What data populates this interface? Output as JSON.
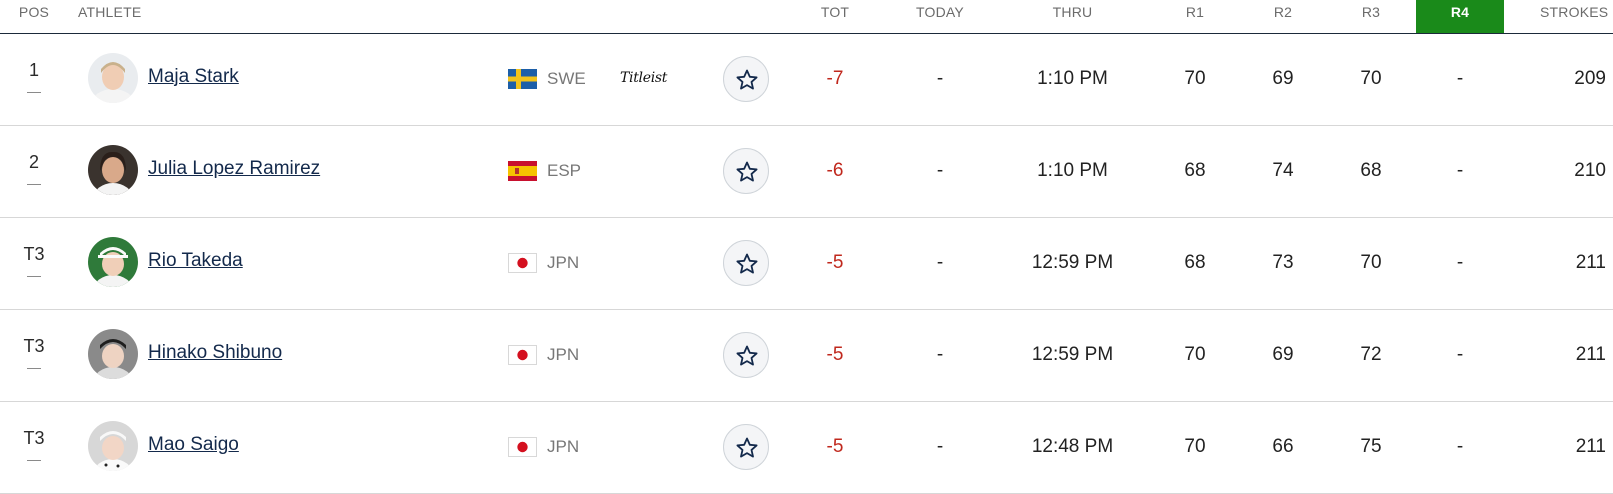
{
  "header": {
    "pos": "POS",
    "athlete": "ATHLETE",
    "tot": "TOT",
    "today": "TODAY",
    "thru": "THRU",
    "r1": "R1",
    "r2": "R2",
    "r3": "R3",
    "r4": "R4",
    "strokes": "STROKES"
  },
  "colors": {
    "accent_r4": "#1a8a1a",
    "under_par": "#c0281d",
    "name_link": "#13294b"
  },
  "players": [
    {
      "pos": "1",
      "name": "Maja Stark",
      "country": "SWE",
      "flag": "sweden-flag-icon",
      "sponsor": "Titleist",
      "tot": "-7",
      "today": "-",
      "thru": "1:10 PM",
      "r1": "70",
      "r2": "69",
      "r3": "70",
      "r4": "-",
      "strokes": "209"
    },
    {
      "pos": "2",
      "name": "Julia Lopez Ramirez",
      "country": "ESP",
      "flag": "spain-flag-icon",
      "sponsor": "",
      "tot": "-6",
      "today": "-",
      "thru": "1:10 PM",
      "r1": "68",
      "r2": "74",
      "r3": "68",
      "r4": "-",
      "strokes": "210"
    },
    {
      "pos": "T3",
      "name": "Rio Takeda",
      "country": "JPN",
      "flag": "japan-flag-icon",
      "sponsor": "",
      "tot": "-5",
      "today": "-",
      "thru": "12:59 PM",
      "r1": "68",
      "r2": "73",
      "r3": "70",
      "r4": "-",
      "strokes": "211"
    },
    {
      "pos": "T3",
      "name": "Hinako Shibuno",
      "country": "JPN",
      "flag": "japan-flag-icon",
      "sponsor": "",
      "tot": "-5",
      "today": "-",
      "thru": "12:59 PM",
      "r1": "70",
      "r2": "69",
      "r3": "72",
      "r4": "-",
      "strokes": "211"
    },
    {
      "pos": "T3",
      "name": "Mao Saigo",
      "country": "JPN",
      "flag": "japan-flag-icon",
      "sponsor": "",
      "tot": "-5",
      "today": "-",
      "thru": "12:48 PM",
      "r1": "70",
      "r2": "66",
      "r3": "75",
      "r4": "-",
      "strokes": "211"
    }
  ]
}
